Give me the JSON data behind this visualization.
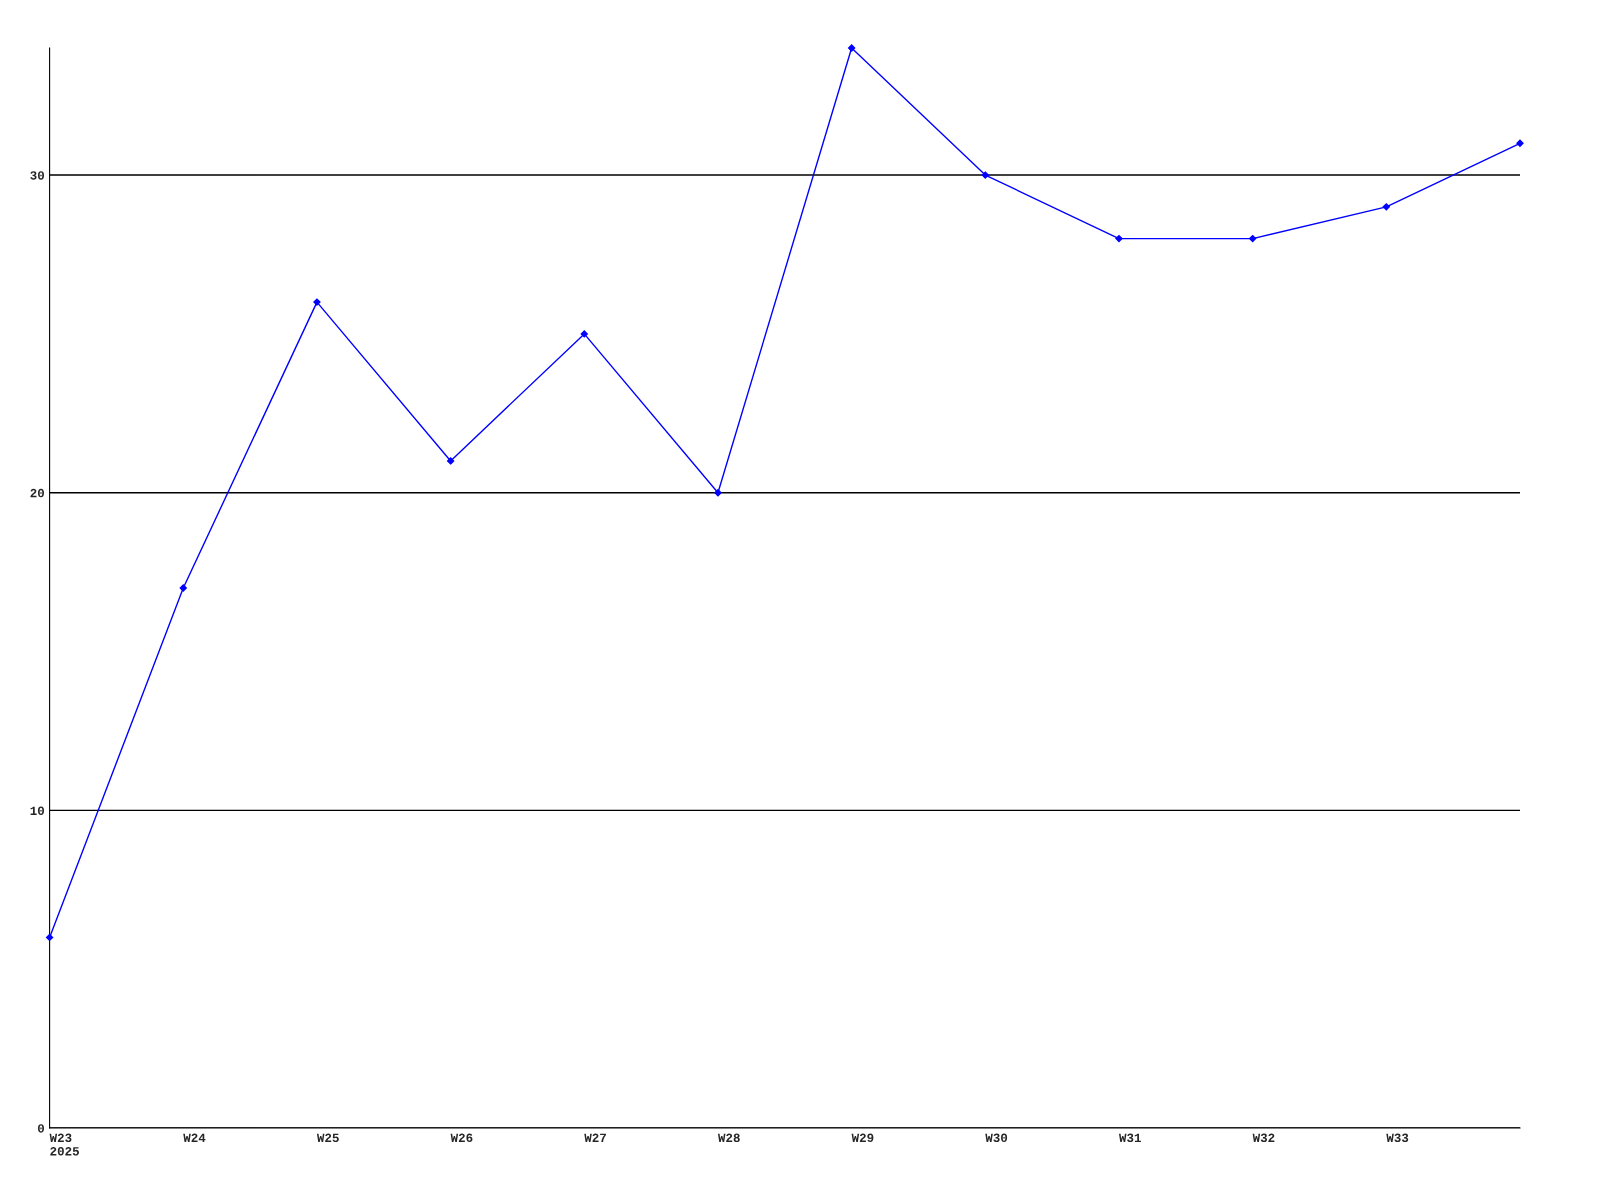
{
  "chart_data": {
    "type": "line",
    "categories": [
      "W23\n2025",
      "W24",
      "W25",
      "W26",
      "W27",
      "W28",
      "W29",
      "W30",
      "W31",
      "W32",
      "W33",
      null
    ],
    "series": [
      {
        "color": "#0000ff",
        "values": [
          6,
          17,
          26,
          21,
          25,
          20,
          34,
          30,
          28,
          28,
          29,
          31
        ]
      }
    ],
    "ylim": [
      0,
      34
    ],
    "yticks": [
      0,
      10,
      20,
      30
    ],
    "grid": "y",
    "marker": "diamond",
    "line_style": "solid"
  }
}
